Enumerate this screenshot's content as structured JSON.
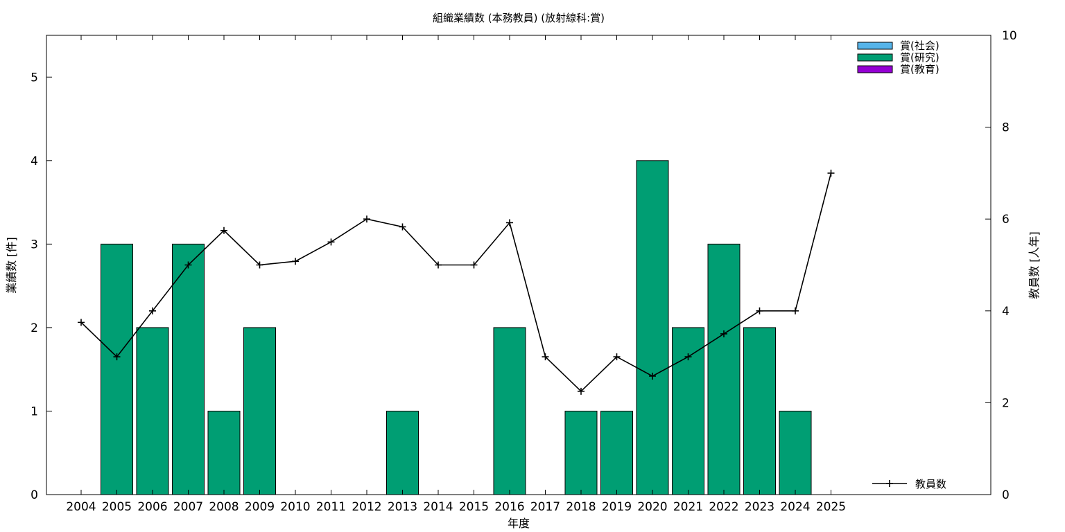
{
  "chart_data": {
    "type": "bar",
    "title": "組織業績数 (本務教員) (放射線科:賞)",
    "xlabel": "年度",
    "ylabel": "業績数 [件]",
    "y2label": "教員数 [人年]",
    "categories": [
      "2004",
      "2005",
      "2006",
      "2007",
      "2008",
      "2009",
      "2010",
      "2011",
      "2012",
      "2013",
      "2014",
      "2015",
      "2016",
      "2017",
      "2018",
      "2019",
      "2020",
      "2021",
      "2022",
      "2023",
      "2024",
      "2025"
    ],
    "ylim": [
      0,
      5.5
    ],
    "yticks": [
      0,
      1,
      2,
      3,
      4,
      5
    ],
    "y2lim": [
      0,
      10
    ],
    "y2ticks": [
      0,
      2,
      4,
      6,
      8,
      10
    ],
    "grid": false,
    "legend_position": "top-right",
    "series": [
      {
        "name": "賞(社会)",
        "color": "#56b4e9",
        "axis": "left",
        "kind": "bar",
        "values": [
          0,
          0,
          0,
          0,
          0,
          0,
          0,
          0,
          0,
          0,
          0,
          0,
          0,
          0,
          0,
          0,
          0,
          0,
          0,
          0,
          0,
          0
        ]
      },
      {
        "name": "賞(研究)",
        "color": "#009e73",
        "axis": "left",
        "kind": "bar",
        "values": [
          0,
          3,
          2,
          3,
          1,
          2,
          0,
          0,
          0,
          1,
          0,
          0,
          2,
          0,
          1,
          1,
          4,
          2,
          3,
          2,
          1,
          0
        ]
      },
      {
        "name": "賞(教育)",
        "color": "#9400d3",
        "axis": "left",
        "kind": "bar",
        "values": [
          0,
          0,
          0,
          0,
          0,
          0,
          0,
          0,
          0,
          0,
          0,
          0,
          0,
          0,
          0,
          0,
          0,
          0,
          0,
          0,
          0,
          0
        ]
      }
    ],
    "line_series": {
      "name": "教員数",
      "color": "#000000",
      "axis": "right",
      "kind": "line",
      "values": [
        3.75,
        3.0,
        4.0,
        5.0,
        5.75,
        5.0,
        5.08,
        5.5,
        6.0,
        5.83,
        5.0,
        5.0,
        5.92,
        3.0,
        2.25,
        3.0,
        2.58,
        3.0,
        3.5,
        4.0,
        4.0,
        7.0
      ]
    }
  }
}
